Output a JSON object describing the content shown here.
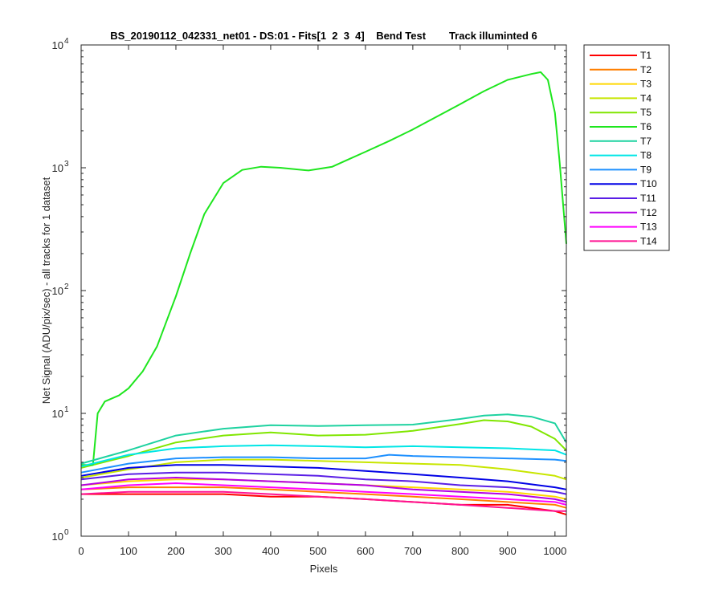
{
  "chart_data": {
    "type": "line",
    "title": "BS_20190112_042331_net01 - DS:01 - Fits[1  2  3  4]    Bend Test        Track illuminted 6",
    "xlabel": "Pixels",
    "ylabel": "Net Signal (ADU/pix/sec) - all tracks for 1 dataset",
    "xlim": [
      0,
      1024
    ],
    "ylim": [
      1,
      10000
    ],
    "yscale": "log",
    "grid": false,
    "legend_position": "outside-top-right",
    "x_ticks": [
      "0",
      "100",
      "200",
      "300",
      "400",
      "500",
      "600",
      "700",
      "800",
      "900",
      "1000"
    ],
    "y_ticks": [
      {
        "base": "10",
        "exp": "0"
      },
      {
        "base": "10",
        "exp": "1"
      },
      {
        "base": "10",
        "exp": "2"
      },
      {
        "base": "10",
        "exp": "3"
      },
      {
        "base": "10",
        "exp": "4"
      }
    ],
    "series": [
      {
        "name": "T1",
        "color": "#ff0000",
        "x": [
          0,
          100,
          200,
          300,
          400,
          500,
          600,
          700,
          800,
          900,
          1000,
          1024
        ],
        "y": [
          2.2,
          2.2,
          2.2,
          2.2,
          2.1,
          2.1,
          2.0,
          1.9,
          1.8,
          1.8,
          1.6,
          1.5
        ]
      },
      {
        "name": "T2",
        "color": "#ff7f00",
        "x": [
          0,
          100,
          200,
          300,
          400,
          500,
          600,
          700,
          800,
          900,
          1000,
          1024
        ],
        "y": [
          2.4,
          2.5,
          2.5,
          2.5,
          2.4,
          2.3,
          2.2,
          2.1,
          2.0,
          1.9,
          1.8,
          1.7
        ]
      },
      {
        "name": "T3",
        "color": "#ffd700",
        "x": [
          0,
          100,
          200,
          300,
          400,
          500,
          600,
          700,
          800,
          900,
          1000,
          1024
        ],
        "y": [
          2.6,
          2.8,
          2.9,
          2.9,
          2.8,
          2.7,
          2.6,
          2.5,
          2.4,
          2.3,
          2.1,
          2.0
        ]
      },
      {
        "name": "T4",
        "color": "#c8e600",
        "x": [
          0,
          100,
          200,
          300,
          400,
          500,
          600,
          700,
          800,
          900,
          1000,
          1024
        ],
        "y": [
          3.0,
          3.5,
          4.0,
          4.2,
          4.2,
          4.1,
          4.0,
          3.9,
          3.8,
          3.5,
          3.1,
          2.9
        ]
      },
      {
        "name": "T5",
        "color": "#80e600",
        "x": [
          0,
          100,
          200,
          300,
          400,
          500,
          600,
          700,
          800,
          850,
          900,
          950,
          1000,
          1024
        ],
        "y": [
          3.6,
          4.5,
          5.8,
          6.6,
          7.0,
          6.6,
          6.7,
          7.2,
          8.2,
          8.8,
          8.6,
          7.8,
          6.2,
          5.0
        ]
      },
      {
        "name": "T6",
        "color": "#1ee61e",
        "x": [
          0,
          25,
          35,
          50,
          80,
          100,
          130,
          160,
          200,
          230,
          260,
          300,
          340,
          380,
          420,
          480,
          530,
          560,
          600,
          650,
          700,
          750,
          800,
          850,
          900,
          950,
          970,
          985,
          1000,
          1010,
          1024
        ],
        "y": [
          3.8,
          3.8,
          10,
          12.5,
          14,
          16,
          22,
          35,
          90,
          200,
          420,
          750,
          960,
          1020,
          1000,
          950,
          1020,
          1150,
          1350,
          1650,
          2050,
          2600,
          3300,
          4200,
          5200,
          5800,
          6000,
          5200,
          2800,
          1100,
          240
        ]
      },
      {
        "name": "T7",
        "color": "#1ed2a0",
        "x": [
          0,
          100,
          200,
          300,
          400,
          500,
          600,
          700,
          800,
          850,
          900,
          950,
          1000,
          1024
        ],
        "y": [
          3.9,
          5.0,
          6.6,
          7.5,
          8.0,
          7.9,
          8.0,
          8.1,
          9.0,
          9.6,
          9.8,
          9.4,
          8.3,
          5.8
        ]
      },
      {
        "name": "T8",
        "color": "#00e6e6",
        "x": [
          0,
          100,
          200,
          300,
          400,
          500,
          600,
          700,
          800,
          900,
          1000,
          1024
        ],
        "y": [
          3.7,
          4.6,
          5.2,
          5.4,
          5.5,
          5.4,
          5.3,
          5.4,
          5.3,
          5.2,
          5.0,
          4.6
        ]
      },
      {
        "name": "T9",
        "color": "#1e90ff",
        "x": [
          0,
          100,
          200,
          300,
          400,
          500,
          600,
          650,
          700,
          800,
          900,
          1000,
          1024
        ],
        "y": [
          3.3,
          3.9,
          4.3,
          4.4,
          4.4,
          4.3,
          4.3,
          4.6,
          4.5,
          4.4,
          4.3,
          4.2,
          4.1
        ]
      },
      {
        "name": "T10",
        "color": "#0000e6",
        "x": [
          0,
          100,
          200,
          300,
          400,
          500,
          600,
          700,
          800,
          900,
          1000,
          1024
        ],
        "y": [
          3.1,
          3.6,
          3.8,
          3.8,
          3.7,
          3.6,
          3.4,
          3.2,
          3.0,
          2.8,
          2.5,
          2.4
        ]
      },
      {
        "name": "T11",
        "color": "#5a1ee6",
        "x": [
          0,
          100,
          200,
          300,
          400,
          500,
          600,
          700,
          800,
          900,
          1000,
          1024
        ],
        "y": [
          2.9,
          3.2,
          3.3,
          3.3,
          3.2,
          3.1,
          2.9,
          2.8,
          2.6,
          2.5,
          2.3,
          2.2
        ]
      },
      {
        "name": "T12",
        "color": "#b400e6",
        "x": [
          0,
          100,
          200,
          300,
          400,
          500,
          600,
          700,
          800,
          900,
          1000,
          1024
        ],
        "y": [
          2.6,
          2.9,
          3.0,
          2.9,
          2.8,
          2.7,
          2.6,
          2.4,
          2.3,
          2.2,
          2.0,
          1.9
        ]
      },
      {
        "name": "T13",
        "color": "#ff00ff",
        "x": [
          0,
          100,
          200,
          300,
          400,
          500,
          600,
          700,
          800,
          900,
          1000,
          1024
        ],
        "y": [
          2.4,
          2.6,
          2.7,
          2.6,
          2.5,
          2.4,
          2.3,
          2.2,
          2.1,
          2.0,
          1.9,
          1.8
        ]
      },
      {
        "name": "T14",
        "color": "#ff1493",
        "x": [
          0,
          100,
          200,
          300,
          400,
          500,
          600,
          700,
          800,
          900,
          1000,
          1024
        ],
        "y": [
          2.2,
          2.3,
          2.3,
          2.3,
          2.2,
          2.1,
          2.0,
          1.9,
          1.8,
          1.7,
          1.6,
          1.6
        ]
      }
    ]
  }
}
